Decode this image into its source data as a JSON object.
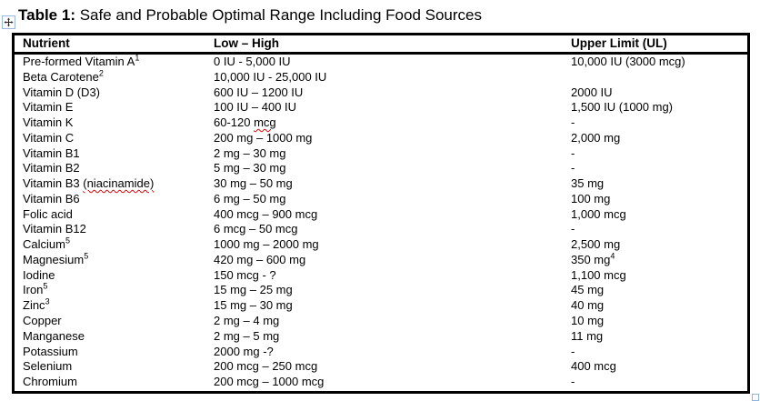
{
  "caption": {
    "prefix": "Table 1:",
    "text": " Safe and Probable Optimal Range Including Food Sources"
  },
  "icons": {
    "move_handle": "four-way-move-arrow-icon",
    "resize_handle": "table-resize-square"
  },
  "colors": {
    "background": "#ffffff",
    "text": "#000000",
    "table_border": "#000000",
    "handle_border": "#8eb4e3",
    "misspell_underline": "#dd0806"
  },
  "table": {
    "headers": [
      "Nutrient",
      "Low – High",
      "Upper Limit (UL)"
    ],
    "rows": [
      {
        "nutrient": [
          [
            "t",
            "Pre-formed Vitamin A"
          ],
          [
            "s",
            "1"
          ]
        ],
        "range": [
          [
            "t",
            "0 IU - 5,000 IU"
          ]
        ],
        "upper": [
          [
            "t",
            "10,000 IU (3000 mcg)"
          ]
        ]
      },
      {
        "nutrient": [
          [
            "t",
            "Beta Carotene"
          ],
          [
            "s",
            "2"
          ]
        ],
        "range": [
          [
            "t",
            "10,000 IU - 25,000 IU"
          ]
        ],
        "upper": [
          [
            "t",
            ""
          ]
        ]
      },
      {
        "nutrient": [
          [
            "t",
            "Vitamin D (D3)"
          ]
        ],
        "range": [
          [
            "t",
            "600 IU – 1200 IU"
          ]
        ],
        "upper": [
          [
            "t",
            "2000 IU"
          ]
        ]
      },
      {
        "nutrient": [
          [
            "t",
            "Vitamin E"
          ]
        ],
        "range": [
          [
            "t",
            "100 IU – 400 IU"
          ]
        ],
        "upper": [
          [
            "t",
            "1,500 IU (1000 mg)"
          ]
        ]
      },
      {
        "nutrient": [
          [
            "t",
            "Vitamin K"
          ]
        ],
        "range": [
          [
            "t",
            "60-120 "
          ],
          [
            "m",
            "mcg"
          ]
        ],
        "upper": [
          [
            "t",
            "-"
          ]
        ]
      },
      {
        "nutrient": [
          [
            "t",
            "Vitamin C"
          ]
        ],
        "range": [
          [
            "t",
            "200 mg – 1000 mg"
          ]
        ],
        "upper": [
          [
            "t",
            "2,000 mg"
          ]
        ]
      },
      {
        "nutrient": [
          [
            "t",
            "Vitamin B1"
          ]
        ],
        "range": [
          [
            "t",
            "2 mg – 30 mg"
          ]
        ],
        "upper": [
          [
            "t",
            "-"
          ]
        ]
      },
      {
        "nutrient": [
          [
            "t",
            "Vitamin B2"
          ]
        ],
        "range": [
          [
            "t",
            "5 mg – 30 mg"
          ]
        ],
        "upper": [
          [
            "t",
            "-"
          ]
        ]
      },
      {
        "nutrient": [
          [
            "t",
            "Vitamin B3 "
          ],
          [
            "m",
            "(niacinamide)"
          ]
        ],
        "range": [
          [
            "t",
            "30 mg – 50 mg"
          ]
        ],
        "upper": [
          [
            "t",
            "35 mg"
          ]
        ]
      },
      {
        "nutrient": [
          [
            "t",
            "Vitamin B6"
          ]
        ],
        "range": [
          [
            "t",
            "6 mg – 50 mg"
          ]
        ],
        "upper": [
          [
            "t",
            "100 mg"
          ]
        ]
      },
      {
        "nutrient": [
          [
            "t",
            "Folic acid"
          ]
        ],
        "range": [
          [
            "t",
            "400 mcg – 900 mcg"
          ]
        ],
        "upper": [
          [
            "t",
            "1,000 mcg"
          ]
        ]
      },
      {
        "nutrient": [
          [
            "t",
            "Vitamin B12"
          ]
        ],
        "range": [
          [
            "t",
            "6 mcg – 50 mcg"
          ]
        ],
        "upper": [
          [
            "t",
            "-"
          ]
        ]
      },
      {
        "nutrient": [
          [
            "t",
            "Calcium"
          ],
          [
            "s",
            "5"
          ]
        ],
        "range": [
          [
            "t",
            "1000 mg – 2000 mg"
          ]
        ],
        "upper": [
          [
            "t",
            "2,500 mg"
          ]
        ]
      },
      {
        "nutrient": [
          [
            "t",
            "Magnesium"
          ],
          [
            "s",
            "5"
          ]
        ],
        "range": [
          [
            "t",
            "420 mg – 600 mg"
          ]
        ],
        "upper": [
          [
            "t",
            "350 mg"
          ],
          [
            "s",
            "4"
          ]
        ]
      },
      {
        "nutrient": [
          [
            "t",
            "Iodine"
          ]
        ],
        "range": [
          [
            "t",
            "150 mcg - ?"
          ]
        ],
        "upper": [
          [
            "t",
            "1,100 mcg"
          ]
        ]
      },
      {
        "nutrient": [
          [
            "t",
            "Iron"
          ],
          [
            "s",
            "5"
          ]
        ],
        "range": [
          [
            "t",
            "15 mg – 25 mg"
          ]
        ],
        "upper": [
          [
            "t",
            "45 mg"
          ]
        ]
      },
      {
        "nutrient": [
          [
            "t",
            "Zinc"
          ],
          [
            "s",
            "3"
          ]
        ],
        "range": [
          [
            "t",
            "15 mg – 30 mg"
          ]
        ],
        "upper": [
          [
            "t",
            "40 mg"
          ]
        ]
      },
      {
        "nutrient": [
          [
            "t",
            "Copper"
          ]
        ],
        "range": [
          [
            "t",
            "2 mg – 4 mg"
          ]
        ],
        "upper": [
          [
            "t",
            "10 mg"
          ]
        ]
      },
      {
        "nutrient": [
          [
            "t",
            "Manganese"
          ]
        ],
        "range": [
          [
            "t",
            "2 mg – 5 mg"
          ]
        ],
        "upper": [
          [
            "t",
            "11 mg"
          ]
        ]
      },
      {
        "nutrient": [
          [
            "t",
            "Potassium"
          ]
        ],
        "range": [
          [
            "t",
            "2000 mg -?"
          ]
        ],
        "upper": [
          [
            "t",
            "-"
          ]
        ]
      },
      {
        "nutrient": [
          [
            "t",
            "Selenium"
          ]
        ],
        "range": [
          [
            "t",
            "200 mcg – 250 mcg"
          ]
        ],
        "upper": [
          [
            "t",
            "400 mcg"
          ]
        ]
      },
      {
        "nutrient": [
          [
            "t",
            "Chromium"
          ]
        ],
        "range": [
          [
            "t",
            "200 mcg – 1000 mcg"
          ]
        ],
        "upper": [
          [
            "t",
            "-"
          ]
        ]
      }
    ]
  }
}
